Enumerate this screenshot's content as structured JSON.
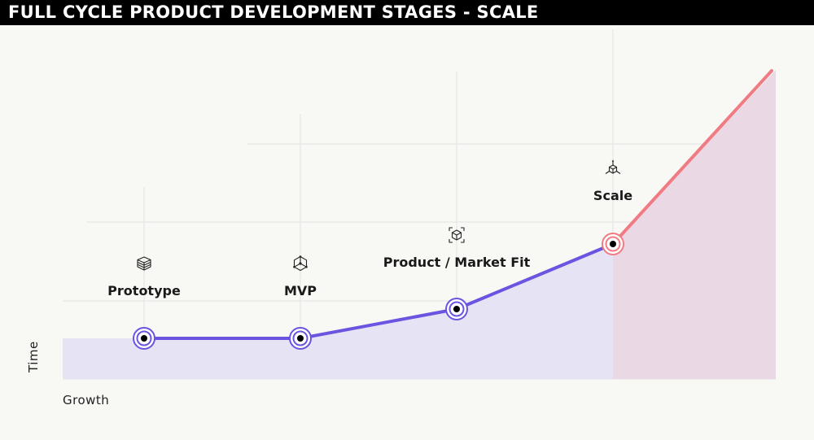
{
  "title": "FULL CYCLE PRODUCT DEVELOPMENT STAGES - SCALE",
  "axes": {
    "x_label": "Growth",
    "y_label": "Time"
  },
  "colors": {
    "primary_line": "#6a55e0",
    "primary_fill": "#e6e3f5",
    "scale_line": "#f07b83",
    "scale_fill": "#ead8e4",
    "grid": "#e2e2e2"
  },
  "stages": [
    {
      "label": "Prototype",
      "icon": "layers-cube-icon",
      "color": "primary"
    },
    {
      "label": "MVP",
      "icon": "network-cube-icon",
      "color": "primary"
    },
    {
      "label": "Product / Market Fit",
      "icon": "framed-cube-icon",
      "color": "primary"
    },
    {
      "label": "Scale",
      "icon": "expand-cube-icon",
      "color": "scale"
    }
  ]
}
